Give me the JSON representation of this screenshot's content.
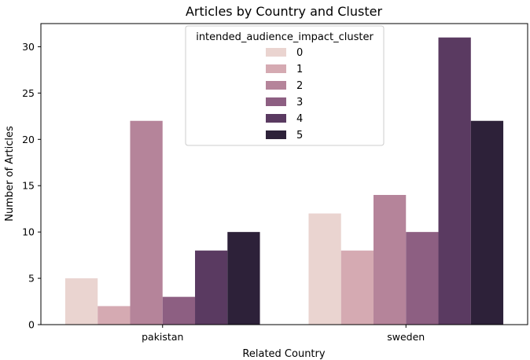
{
  "chart_data": {
    "type": "bar",
    "title": "Articles by Country and Cluster",
    "xlabel": "Related Country",
    "ylabel": "Number of Articles",
    "categories": [
      "pakistan",
      "sweden"
    ],
    "ylim": [
      0,
      32.5
    ],
    "yticks": [
      0,
      5,
      10,
      15,
      20,
      25,
      30
    ],
    "grid": false,
    "legend": {
      "title": "intended_audience_impact_cluster",
      "placement": "top-center"
    },
    "series": [
      {
        "name": "0",
        "color": "#ead4d0",
        "values": [
          5,
          12
        ]
      },
      {
        "name": "1",
        "color": "#d5aab2",
        "values": [
          2,
          8
        ]
      },
      {
        "name": "2",
        "color": "#b5849a",
        "values": [
          22,
          14
        ]
      },
      {
        "name": "3",
        "color": "#8d5f82",
        "values": [
          3,
          10
        ]
      },
      {
        "name": "4",
        "color": "#5a3a61",
        "values": [
          8,
          31
        ]
      },
      {
        "name": "5",
        "color": "#2d2139",
        "values": [
          10,
          22
        ]
      }
    ]
  }
}
